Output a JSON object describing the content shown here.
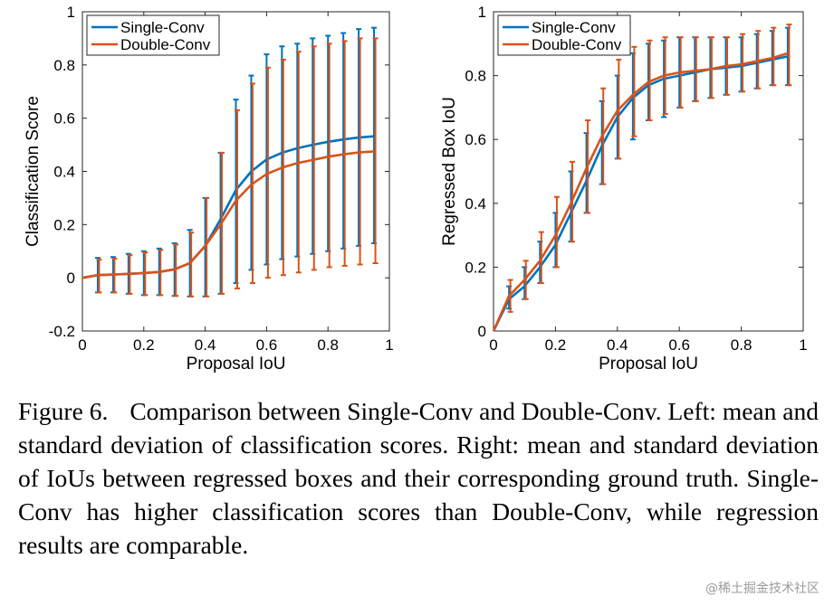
{
  "charts": [
    {
      "type": "line",
      "ylabel": "Classification Score",
      "xlabel": "Proposal IoU",
      "xlim": [
        0,
        1
      ],
      "ylim": [
        -0.2,
        1
      ],
      "xticks": [
        "0",
        "0.2",
        "0.4",
        "0.6",
        "0.8",
        "1"
      ],
      "yticks": [
        "-0.2",
        "0",
        "0.2",
        "0.4",
        "0.6",
        "0.8",
        "1"
      ],
      "grid": false,
      "legend_position": "top-left",
      "colors": {
        "Single-Conv": "#0072bd",
        "Double-Conv": "#d95319"
      },
      "series": [
        {
          "name": "Single-Conv",
          "curve": [
            [
              0,
              0
            ],
            [
              0.05,
              0.01
            ],
            [
              0.1,
              0.012
            ],
            [
              0.15,
              0.015
            ],
            [
              0.2,
              0.018
            ],
            [
              0.25,
              0.022
            ],
            [
              0.3,
              0.032
            ],
            [
              0.35,
              0.055
            ],
            [
              0.4,
              0.12
            ],
            [
              0.45,
              0.22
            ],
            [
              0.5,
              0.33
            ],
            [
              0.55,
              0.4
            ],
            [
              0.6,
              0.445
            ],
            [
              0.65,
              0.47
            ],
            [
              0.7,
              0.487
            ],
            [
              0.75,
              0.5
            ],
            [
              0.8,
              0.511
            ],
            [
              0.85,
              0.52
            ],
            [
              0.9,
              0.527
            ],
            [
              0.95,
              0.532
            ]
          ],
          "errorbars": [
            [
              0.05,
              -0.055,
              0.075
            ],
            [
              0.1,
              -0.055,
              0.078
            ],
            [
              0.15,
              -0.06,
              0.09
            ],
            [
              0.2,
              -0.065,
              0.1
            ],
            [
              0.25,
              -0.065,
              0.11
            ],
            [
              0.3,
              -0.068,
              0.13
            ],
            [
              0.35,
              -0.07,
              0.18
            ],
            [
              0.4,
              -0.07,
              0.3
            ],
            [
              0.45,
              -0.06,
              0.47
            ],
            [
              0.5,
              -0.02,
              0.67
            ],
            [
              0.55,
              0.03,
              0.76
            ],
            [
              0.6,
              0.05,
              0.84
            ],
            [
              0.65,
              0.07,
              0.87
            ],
            [
              0.7,
              0.08,
              0.88
            ],
            [
              0.75,
              0.09,
              0.9
            ],
            [
              0.8,
              0.1,
              0.91
            ],
            [
              0.85,
              0.11,
              0.92
            ],
            [
              0.9,
              0.12,
              0.935
            ],
            [
              0.95,
              0.13,
              0.94
            ]
          ]
        },
        {
          "name": "Double-Conv",
          "curve": [
            [
              0,
              0
            ],
            [
              0.05,
              0.01
            ],
            [
              0.1,
              0.012
            ],
            [
              0.15,
              0.015
            ],
            [
              0.2,
              0.018
            ],
            [
              0.25,
              0.022
            ],
            [
              0.3,
              0.032
            ],
            [
              0.35,
              0.055
            ],
            [
              0.4,
              0.12
            ],
            [
              0.45,
              0.2
            ],
            [
              0.5,
              0.29
            ],
            [
              0.55,
              0.35
            ],
            [
              0.6,
              0.39
            ],
            [
              0.65,
              0.414
            ],
            [
              0.7,
              0.431
            ],
            [
              0.75,
              0.443
            ],
            [
              0.8,
              0.455
            ],
            [
              0.85,
              0.464
            ],
            [
              0.9,
              0.471
            ],
            [
              0.95,
              0.475
            ]
          ],
          "errorbars": [
            [
              0.05,
              -0.055,
              0.068
            ],
            [
              0.1,
              -0.055,
              0.072
            ],
            [
              0.15,
              -0.06,
              0.085
            ],
            [
              0.2,
              -0.065,
              0.095
            ],
            [
              0.25,
              -0.065,
              0.105
            ],
            [
              0.3,
              -0.068,
              0.125
            ],
            [
              0.35,
              -0.07,
              0.17
            ],
            [
              0.4,
              -0.07,
              0.3
            ],
            [
              0.45,
              -0.06,
              0.47
            ],
            [
              0.5,
              -0.04,
              0.63
            ],
            [
              0.55,
              -0.02,
              0.73
            ],
            [
              0.6,
              0.0,
              0.79
            ],
            [
              0.65,
              0.01,
              0.82
            ],
            [
              0.7,
              0.02,
              0.85
            ],
            [
              0.75,
              0.03,
              0.87
            ],
            [
              0.8,
              0.04,
              0.88
            ],
            [
              0.85,
              0.045,
              0.89
            ],
            [
              0.9,
              0.05,
              0.9
            ],
            [
              0.95,
              0.055,
              0.9
            ]
          ]
        }
      ]
    },
    {
      "type": "line",
      "ylabel": "Regressed Box IoU",
      "xlabel": "Proposal IoU",
      "xlim": [
        0,
        1
      ],
      "ylim": [
        0,
        1
      ],
      "xticks": [
        "0",
        "0.2",
        "0.4",
        "0.6",
        "0.8",
        "1"
      ],
      "yticks": [
        "0",
        "0.2",
        "0.4",
        "0.6",
        "0.8",
        "1"
      ],
      "grid": false,
      "legend_position": "top-left",
      "colors": {
        "Single-Conv": "#0072bd",
        "Double-Conv": "#d95319"
      },
      "series": [
        {
          "name": "Single-Conv",
          "curve": [
            [
              0,
              0
            ],
            [
              0.05,
              0.1
            ],
            [
              0.1,
              0.14
            ],
            [
              0.15,
              0.2
            ],
            [
              0.2,
              0.27
            ],
            [
              0.25,
              0.37
            ],
            [
              0.3,
              0.47
            ],
            [
              0.35,
              0.58
            ],
            [
              0.4,
              0.67
            ],
            [
              0.45,
              0.73
            ],
            [
              0.5,
              0.77
            ],
            [
              0.55,
              0.79
            ],
            [
              0.6,
              0.8
            ],
            [
              0.65,
              0.81
            ],
            [
              0.7,
              0.82
            ],
            [
              0.75,
              0.825
            ],
            [
              0.8,
              0.83
            ],
            [
              0.85,
              0.84
            ],
            [
              0.9,
              0.85
            ],
            [
              0.95,
              0.86
            ]
          ],
          "errorbars": [
            [
              0.05,
              0.07,
              0.14
            ],
            [
              0.1,
              0.1,
              0.2
            ],
            [
              0.15,
              0.15,
              0.28
            ],
            [
              0.2,
              0.2,
              0.37
            ],
            [
              0.25,
              0.28,
              0.5
            ],
            [
              0.3,
              0.37,
              0.62
            ],
            [
              0.35,
              0.46,
              0.72
            ],
            [
              0.4,
              0.54,
              0.8
            ],
            [
              0.45,
              0.6,
              0.87
            ],
            [
              0.5,
              0.66,
              0.9
            ],
            [
              0.55,
              0.67,
              0.91
            ],
            [
              0.6,
              0.7,
              0.92
            ],
            [
              0.65,
              0.72,
              0.92
            ],
            [
              0.7,
              0.73,
              0.92
            ],
            [
              0.75,
              0.74,
              0.92
            ],
            [
              0.8,
              0.75,
              0.92
            ],
            [
              0.85,
              0.76,
              0.93
            ],
            [
              0.9,
              0.77,
              0.94
            ],
            [
              0.95,
              0.77,
              0.95
            ]
          ]
        },
        {
          "name": "Double-Conv",
          "curve": [
            [
              0,
              0
            ],
            [
              0.05,
              0.11
            ],
            [
              0.1,
              0.16
            ],
            [
              0.15,
              0.22
            ],
            [
              0.2,
              0.3
            ],
            [
              0.25,
              0.4
            ],
            [
              0.3,
              0.51
            ],
            [
              0.35,
              0.61
            ],
            [
              0.4,
              0.69
            ],
            [
              0.45,
              0.74
            ],
            [
              0.5,
              0.78
            ],
            [
              0.55,
              0.8
            ],
            [
              0.6,
              0.81
            ],
            [
              0.65,
              0.815
            ],
            [
              0.7,
              0.82
            ],
            [
              0.75,
              0.83
            ],
            [
              0.8,
              0.835
            ],
            [
              0.85,
              0.845
            ],
            [
              0.9,
              0.855
            ],
            [
              0.95,
              0.87
            ]
          ],
          "errorbars": [
            [
              0.05,
              0.06,
              0.16
            ],
            [
              0.1,
              0.1,
              0.22
            ],
            [
              0.15,
              0.15,
              0.31
            ],
            [
              0.2,
              0.2,
              0.42
            ],
            [
              0.25,
              0.28,
              0.53
            ],
            [
              0.3,
              0.37,
              0.66
            ],
            [
              0.35,
              0.46,
              0.76
            ],
            [
              0.4,
              0.54,
              0.85
            ],
            [
              0.45,
              0.61,
              0.89
            ],
            [
              0.5,
              0.66,
              0.91
            ],
            [
              0.55,
              0.68,
              0.92
            ],
            [
              0.6,
              0.7,
              0.92
            ],
            [
              0.65,
              0.72,
              0.92
            ],
            [
              0.7,
              0.73,
              0.92
            ],
            [
              0.75,
              0.74,
              0.92
            ],
            [
              0.8,
              0.75,
              0.93
            ],
            [
              0.85,
              0.76,
              0.94
            ],
            [
              0.9,
              0.77,
              0.95
            ],
            [
              0.95,
              0.77,
              0.96
            ]
          ]
        }
      ]
    }
  ],
  "caption": {
    "label": "Figure 6.",
    "text": "Comparison between Single-Conv and Double-Conv. Left: mean and standard deviation of classification scores. Right: mean and standard deviation of IoUs between regressed boxes and their corresponding ground truth. Single-Conv has higher classification scores than Double-Conv, while regression results are comparable."
  },
  "watermark": "@稀土掘金技术社区"
}
